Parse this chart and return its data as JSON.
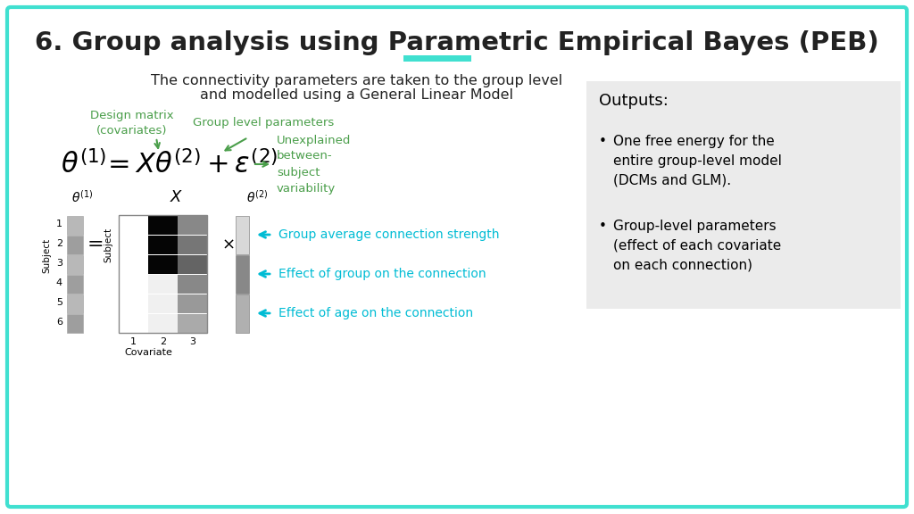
{
  "title": "6. Group analysis using Parametric Empirical Bayes (PEB)",
  "subtitle_line1": "The connectivity parameters are taken to the group level",
  "subtitle_line2": "and modelled using a General Linear Model",
  "bg_color": "#ffffff",
  "border_color": "#40e0d0",
  "title_color": "#222222",
  "subtitle_color": "#222222",
  "green_color": "#4a9e4a",
  "cyan_color": "#00bcd4",
  "output_bg": "#ebebeb",
  "accent_bar_color": "#40e0d0",
  "arrow1_label": "Group average connection strength",
  "arrow2_label": "Effect of group on the connection",
  "arrow3_label": "Effect of age on the connection",
  "outputs_title": "Outputs:",
  "output_bullet1_line1": "One free energy for the",
  "output_bullet1_line2": "entire group-level model",
  "output_bullet1_line3": "(DCMs and GLM).",
  "output_bullet2_line1": "Group-level parameters",
  "output_bullet2_line2": "(effect of each covariate",
  "output_bullet2_line3": "on each connection)"
}
